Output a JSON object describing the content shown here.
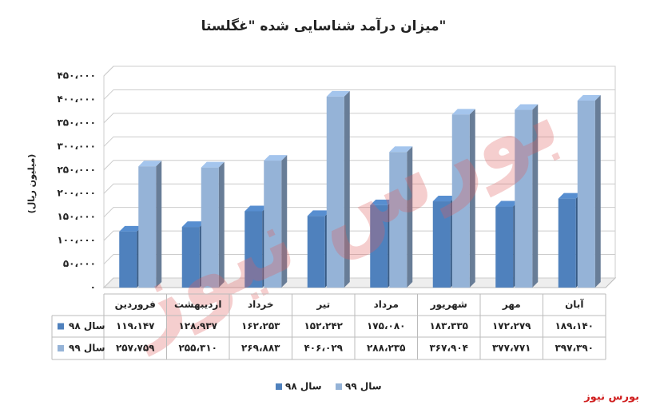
{
  "chart_data": {
    "type": "bar",
    "title": "میزان درآمد شناسایی شده \"غگلستا\"",
    "y_label": "(میلیون ریال)",
    "categories": [
      "فروردین",
      "اردیبهشت",
      "خرداد",
      "تیر",
      "مرداد",
      "شهریور",
      "مهر",
      "آبان"
    ],
    "series": [
      {
        "name": "سال ۹۸",
        "color": "#4f81bd",
        "values": [
          119147,
          128937,
          162253,
          152242,
          175080,
          183335,
          172279,
          189140
        ],
        "value_labels": [
          "۱۱۹،۱۴۷",
          "۱۲۸،۹۳۷",
          "۱۶۲،۲۵۳",
          "۱۵۲،۲۴۲",
          "۱۷۵،۰۸۰",
          "۱۸۳،۳۳۵",
          "۱۷۲،۲۷۹",
          "۱۸۹،۱۴۰"
        ]
      },
      {
        "name": "سال ۹۹",
        "color": "#95b3d7",
        "values": [
          257759,
          255310,
          269883,
          406029,
          288235,
          367904,
          377771,
          397390
        ],
        "value_labels": [
          "۲۵۷،۷۵۹",
          "۲۵۵،۳۱۰",
          "۲۶۹،۸۸۳",
          "۴۰۶،۰۲۹",
          "۲۸۸،۲۳۵",
          "۳۶۷،۹۰۴",
          "۳۷۷،۷۷۱",
          "۳۹۷،۳۹۰"
        ]
      }
    ],
    "ylim": [
      0,
      450000
    ],
    "yticks": [
      {
        "value": 0,
        "label": "۰"
      },
      {
        "value": 50000,
        "label": "۵۰،۰۰۰"
      },
      {
        "value": 100000,
        "label": "۱۰۰،۰۰۰"
      },
      {
        "value": 150000,
        "label": "۱۵۰،۰۰۰"
      },
      {
        "value": 200000,
        "label": "۲۰۰،۰۰۰"
      },
      {
        "value": 250000,
        "label": "۲۵۰،۰۰۰"
      },
      {
        "value": 300000,
        "label": "۳۰۰،۰۰۰"
      },
      {
        "value": 350000,
        "label": "۳۵۰،۰۰۰"
      },
      {
        "value": 400000,
        "label": "۴۰۰،۰۰۰"
      },
      {
        "value": 450000,
        "label": "۴۵۰،۰۰۰"
      }
    ],
    "grid": true,
    "source": "بورس نیوز"
  }
}
